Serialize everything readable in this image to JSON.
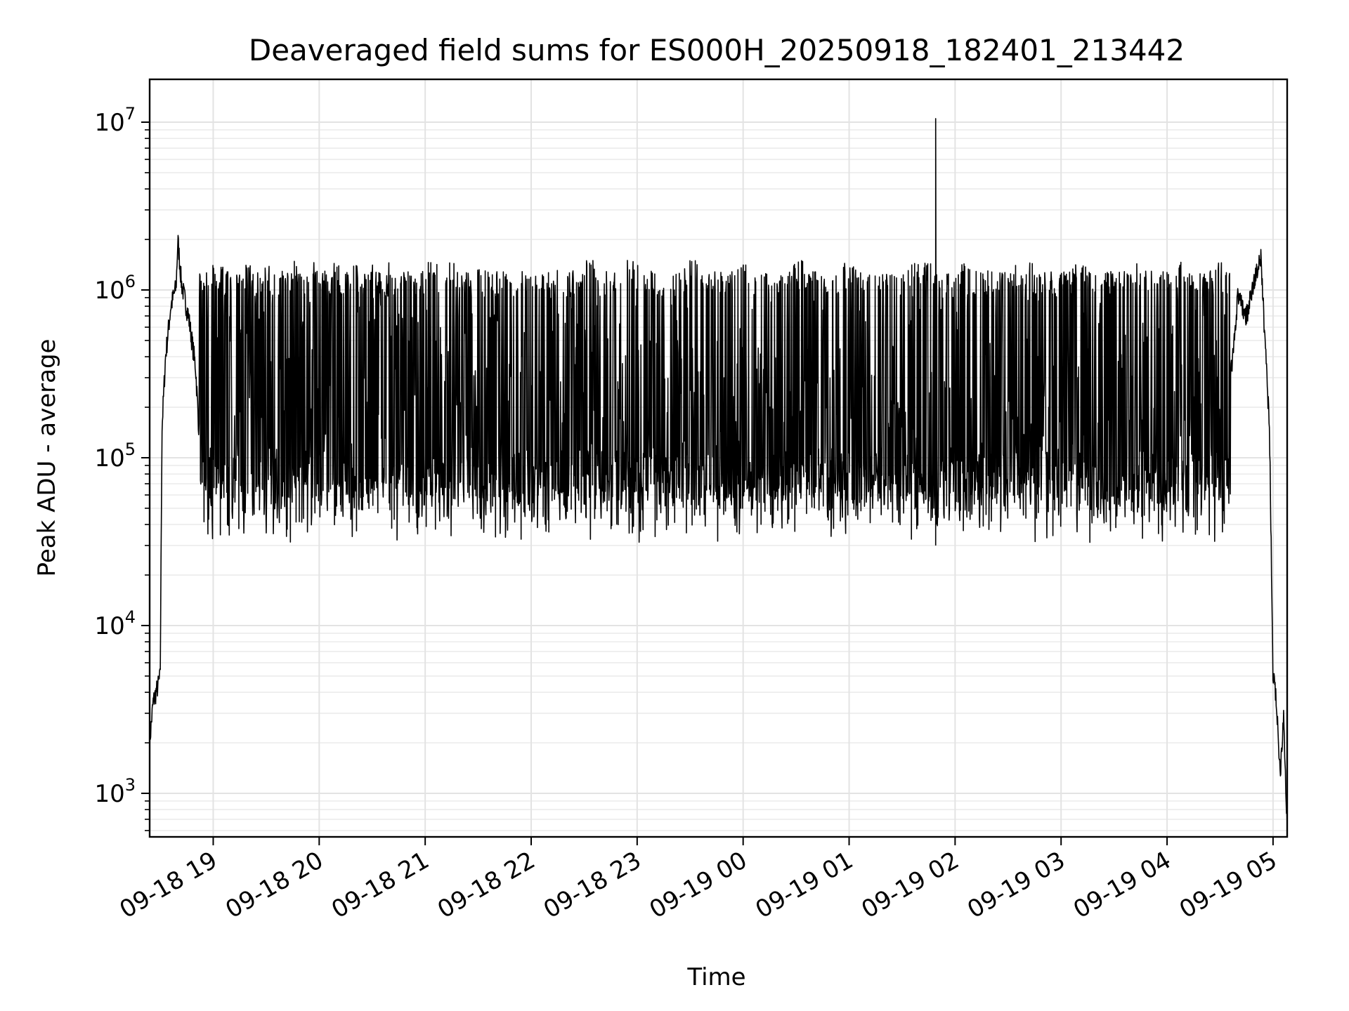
{
  "chart_data": {
    "type": "line",
    "title": "Deaveraged field sums for ES000H_20250918_182401_213442",
    "xlabel": "Time",
    "ylabel": "Peak ADU - average",
    "xlim": [
      "2025-09-18 18:24:01",
      "2025-09-19 05:08:00"
    ],
    "ylim": [
      550,
      18000000
    ],
    "yscale": "log",
    "grid": "major and minor",
    "line_color": "#000000",
    "x_ticks": [
      {
        "time": "2025-09-18 19:00",
        "label": "09-18 19"
      },
      {
        "time": "2025-09-18 20:00",
        "label": "09-18 20"
      },
      {
        "time": "2025-09-18 21:00",
        "label": "09-18 21"
      },
      {
        "time": "2025-09-18 22:00",
        "label": "09-18 22"
      },
      {
        "time": "2025-09-18 23:00",
        "label": "09-18 23"
      },
      {
        "time": "2025-09-19 00:00",
        "label": "09-19 00"
      },
      {
        "time": "2025-09-19 01:00",
        "label": "09-19 01"
      },
      {
        "time": "2025-09-19 02:00",
        "label": "09-19 02"
      },
      {
        "time": "2025-09-19 03:00",
        "label": "09-19 03"
      },
      {
        "time": "2025-09-19 04:00",
        "label": "09-19 04"
      },
      {
        "time": "2025-09-19 05:00",
        "label": "09-19 05"
      }
    ],
    "y_ticks": [
      {
        "value": 1000,
        "base": "10",
        "exp": "3"
      },
      {
        "value": 10000,
        "base": "10",
        "exp": "4"
      },
      {
        "value": 100000,
        "base": "10",
        "exp": "5"
      },
      {
        "value": 1000000,
        "base": "10",
        "exp": "6"
      },
      {
        "value": 10000000,
        "base": "10",
        "exp": "7"
      }
    ],
    "series": [
      {
        "points": [
          [
            "2025-09-18 18:24",
            2000
          ],
          [
            "2025-09-18 18:26",
            3500
          ],
          [
            "2025-09-18 18:29",
            4500
          ],
          [
            "2025-09-18 18:30",
            5000
          ],
          [
            "2025-09-18 18:31",
            150000
          ],
          [
            "2025-09-18 18:33",
            400000
          ],
          [
            "2025-09-18 18:36",
            800000
          ],
          [
            "2025-09-18 18:39",
            1050000
          ],
          [
            "2025-09-18 18:40",
            2000000
          ],
          [
            "2025-09-18 18:42",
            1100000
          ],
          [
            "2025-09-18 18:46",
            700000
          ],
          [
            "2025-09-18 18:50",
            350000
          ],
          [
            "2025-09-18 18:52",
            140000
          ],
          [
            "2025-09-18 18:54",
            600000
          ],
          [
            "2025-09-18 18:56",
            200000
          ],
          [
            "2025-09-18 19:00",
            1500000
          ],
          [
            "2025-09-18 19:01",
            70000
          ],
          [
            "2025-09-18 19:05",
            1400000
          ],
          [
            "2025-09-18 19:08",
            65000
          ],
          [
            "2025-09-18 19:12",
            1500000
          ],
          [
            "2025-09-18 19:15",
            60000
          ],
          [
            "2025-09-18 19:20",
            1550000
          ],
          [
            "2025-09-18 19:25",
            60000
          ],
          [
            "2025-09-18 19:30",
            1600000
          ],
          [
            "2025-09-18 19:35",
            55000
          ],
          [
            "2025-09-18 19:40",
            1550000
          ],
          [
            "2025-09-18 19:40",
            45000
          ],
          [
            "2025-09-18 19:46",
            1500000
          ],
          [
            "2025-09-18 19:52",
            55000
          ],
          [
            "2025-09-18 19:58",
            1400000
          ],
          [
            "2025-09-18 20:05",
            60000
          ],
          [
            "2025-09-18 20:10",
            1700000
          ],
          [
            "2025-09-18 20:15",
            50000
          ],
          [
            "2025-09-18 20:20",
            1200000
          ],
          [
            "2025-09-18 20:25",
            55000
          ],
          [
            "2025-09-18 20:30",
            1000000
          ],
          [
            "2025-09-18 20:35",
            40000
          ],
          [
            "2025-09-18 20:40",
            800000
          ],
          [
            "2025-09-18 20:45",
            50000
          ],
          [
            "2025-09-18 20:50",
            1500000
          ],
          [
            "2025-09-18 20:55",
            55000
          ],
          [
            "2025-09-18 21:05",
            2100000
          ],
          [
            "2025-09-18 21:10",
            50000
          ],
          [
            "2025-09-18 21:15",
            1800000
          ],
          [
            "2025-09-18 21:20",
            40000
          ],
          [
            "2025-09-18 21:30",
            800000
          ],
          [
            "2025-09-18 21:40",
            45000
          ],
          [
            "2025-09-18 21:50",
            400000
          ],
          [
            "2025-09-18 22:00",
            40000
          ],
          [
            "2025-09-18 22:10",
            35000
          ],
          [
            "2025-09-18 22:13",
            1400000
          ],
          [
            "2025-09-18 22:20",
            35000
          ],
          [
            "2025-09-18 22:35",
            1450000
          ],
          [
            "2025-09-18 22:40",
            30000
          ],
          [
            "2025-09-18 23:00",
            1500000
          ],
          [
            "2025-09-18 23:10",
            30000
          ],
          [
            "2025-09-18 23:30",
            1550000
          ],
          [
            "2025-09-18 23:45",
            30000
          ],
          [
            "2025-09-19 00:00",
            1600000
          ],
          [
            "2025-09-19 00:15",
            30000
          ],
          [
            "2025-09-19 00:30",
            1600000
          ],
          [
            "2025-09-19 00:45",
            30000
          ],
          [
            "2025-09-19 01:00",
            1600000
          ],
          [
            "2025-09-19 01:15",
            30000
          ],
          [
            "2025-09-19 01:35",
            1500000
          ],
          [
            "2025-09-19 01:48",
            2000000
          ],
          [
            "2025-09-19 01:48",
            30000
          ],
          [
            "2025-09-19 01:49",
            10500000
          ],
          [
            "2025-09-19 01:50",
            30000
          ],
          [
            "2025-09-19 02:05",
            1600000
          ],
          [
            "2025-09-19 02:20",
            30000
          ],
          [
            "2025-09-19 02:40",
            1600000
          ],
          [
            "2025-09-19 02:55",
            27000
          ],
          [
            "2025-09-19 03:10",
            1550000
          ],
          [
            "2025-09-19 03:25",
            35000
          ],
          [
            "2025-09-19 03:40",
            1500000
          ],
          [
            "2025-09-19 03:55",
            40000
          ],
          [
            "2025-09-19 04:10",
            1400000
          ],
          [
            "2025-09-19 04:20",
            50000
          ],
          [
            "2025-09-19 04:30",
            1300000
          ],
          [
            "2025-09-19 04:33",
            120000
          ],
          [
            "2025-09-19 04:36",
            300000
          ],
          [
            "2025-09-19 04:40",
            900000
          ],
          [
            "2025-09-19 04:45",
            700000
          ],
          [
            "2025-09-19 04:50",
            1200000
          ],
          [
            "2025-09-19 04:53",
            1600000
          ],
          [
            "2025-09-19 04:56",
            400000
          ],
          [
            "2025-09-19 04:58",
            150000
          ],
          [
            "2025-09-19 05:00",
            5000
          ],
          [
            "2025-09-19 05:02",
            3500
          ],
          [
            "2025-09-19 05:04",
            1300
          ],
          [
            "2025-09-19 05:06",
            3000
          ],
          [
            "2025-09-19 05:08",
            600
          ]
        ]
      }
    ]
  }
}
